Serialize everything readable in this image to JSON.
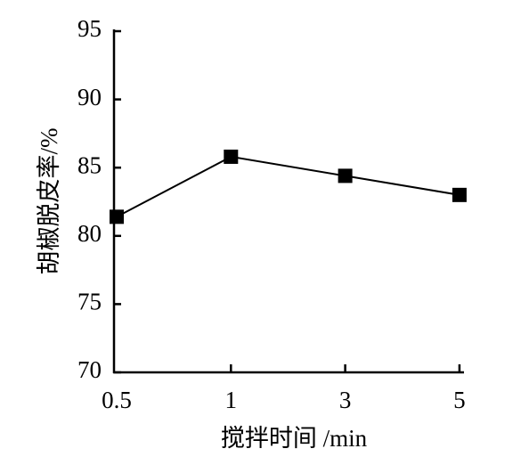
{
  "chart_data": {
    "type": "line",
    "x_label": "搅拌时间 /min",
    "y_label": "胡椒脱皮率/%",
    "categories": [
      "0.5",
      "1",
      "3",
      "5"
    ],
    "series": [
      {
        "name": null,
        "color": "#000000",
        "values": [
          81.4,
          85.8,
          84.4,
          83.0
        ]
      }
    ],
    "ylim": [
      70,
      95
    ],
    "yticks": [
      70,
      75,
      80,
      85,
      90,
      95
    ],
    "grid": false
  }
}
